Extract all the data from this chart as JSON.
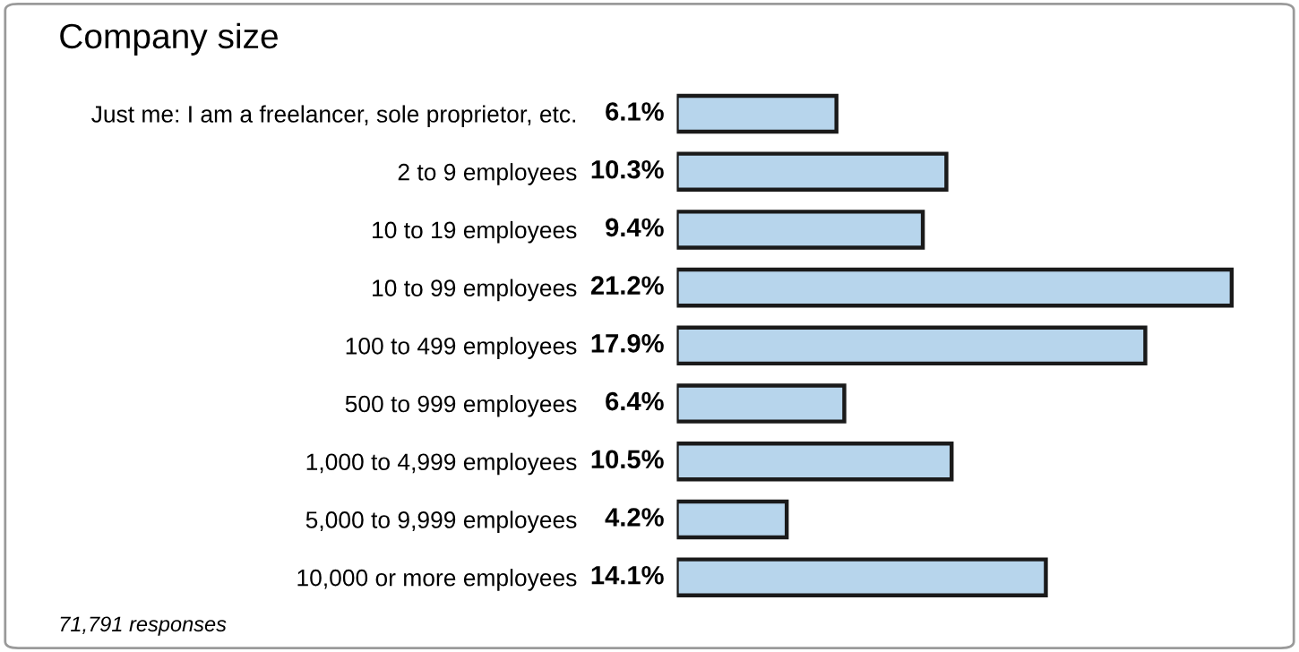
{
  "chart_data": {
    "type": "bar",
    "orientation": "horizontal",
    "title": "Company size",
    "categories": [
      "Just me: I am a freelancer, sole proprietor, etc.",
      "2 to 9 employees",
      "10 to 19 employees",
      "10 to 99 employees",
      "100 to 499 employees",
      "500 to 999 employees",
      "1,000 to 4,999 employees",
      "5,000 to 9,999 employees",
      "10,000 or more employees"
    ],
    "values": [
      6.1,
      10.3,
      9.4,
      21.2,
      17.9,
      6.4,
      10.5,
      4.2,
      14.1
    ],
    "value_labels": [
      "6.1%",
      "10.3%",
      "9.4%",
      "21.2%",
      "17.9%",
      "6.4%",
      "10.5%",
      "4.2%",
      "14.1%"
    ],
    "color": "#b7d5ec",
    "annotations": [
      "71,791 responses"
    ],
    "legend": false,
    "grid": false
  }
}
